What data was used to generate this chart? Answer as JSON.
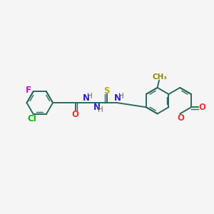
{
  "background_color": "#f5f5f5",
  "bond_color": "#2d6b5e",
  "atom_colors": {
    "F": "#dd00dd",
    "Cl": "#00bb00",
    "O": "#ee3333",
    "N": "#2222cc",
    "S": "#bbaa00",
    "H": "#666666",
    "CH3": "#888800"
  },
  "figsize": [
    3.0,
    3.0
  ],
  "dpi": 100
}
